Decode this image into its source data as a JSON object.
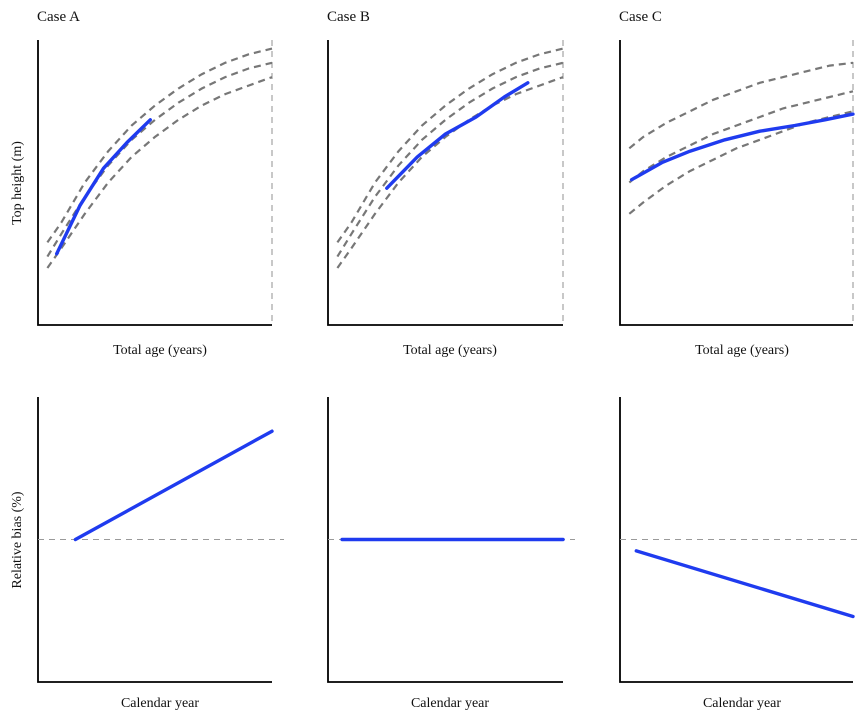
{
  "colors": {
    "observed": "#1f3bef",
    "reference": "#777777",
    "zero_line": "#9a9a9a",
    "axis": "#000000"
  },
  "labels": {
    "top_height": "Top height (m)",
    "relative_bias": "Relative bias (%)",
    "total_age": "Total age (years)",
    "calendar_year": "Calendar year"
  },
  "chart_data": [
    {
      "id": "topA",
      "type": "line",
      "title": "Case A",
      "xlabel": "Total age (years)",
      "ylabel": "Top height (m)",
      "xlim": [
        0,
        100
      ],
      "ylim": [
        0,
        100
      ],
      "vline_x": 100,
      "reference_curves": [
        {
          "x": [
            4,
            10,
            20,
            30,
            40,
            50,
            60,
            70,
            80,
            90,
            100
          ],
          "y": [
            29,
            36,
            50,
            61,
            70,
            77,
            83,
            88,
            92,
            95,
            97
          ]
        },
        {
          "x": [
            4,
            10,
            20,
            30,
            40,
            50,
            60,
            70,
            80,
            90,
            100
          ],
          "y": [
            24,
            32,
            45,
            56,
            65,
            72,
            78,
            83,
            87,
            90,
            92
          ]
        },
        {
          "x": [
            4,
            10,
            20,
            30,
            40,
            50,
            60,
            70,
            80,
            90,
            100
          ],
          "y": [
            20,
            27,
            39,
            50,
            59,
            66,
            72,
            77,
            81,
            84,
            87
          ]
        }
      ],
      "observed": {
        "x": [
          8,
          18,
          28,
          38,
          48
        ],
        "y": [
          25,
          42,
          55,
          64,
          72
        ]
      },
      "zero_line": false
    },
    {
      "id": "topB",
      "type": "line",
      "title": "Case B",
      "xlabel": "Total age (years)",
      "ylabel": "",
      "xlim": [
        0,
        100
      ],
      "ylim": [
        0,
        100
      ],
      "vline_x": 100,
      "reference_curves": [
        {
          "x": [
            4,
            10,
            20,
            30,
            40,
            50,
            60,
            70,
            80,
            90,
            100
          ],
          "y": [
            29,
            36,
            50,
            61,
            70,
            77,
            83,
            88,
            92,
            95,
            97
          ]
        },
        {
          "x": [
            4,
            10,
            20,
            30,
            40,
            50,
            60,
            70,
            80,
            90,
            100
          ],
          "y": [
            24,
            32,
            45,
            56,
            65,
            72,
            78,
            83,
            87,
            90,
            92
          ]
        },
        {
          "x": [
            4,
            10,
            20,
            30,
            40,
            50,
            60,
            70,
            80,
            90,
            100
          ],
          "y": [
            20,
            27,
            39,
            50,
            59,
            66,
            72,
            77,
            81,
            84,
            87
          ]
        }
      ],
      "observed": {
        "x": [
          25,
          38,
          50,
          63,
          75,
          85
        ],
        "y": [
          48,
          59,
          67,
          73,
          80,
          85
        ]
      },
      "zero_line": false
    },
    {
      "id": "topC",
      "type": "line",
      "title": "Case C",
      "xlabel": "Total age (years)",
      "ylabel": "",
      "xlim": [
        0,
        100
      ],
      "ylim": [
        0,
        100
      ],
      "vline_x": 100,
      "reference_curves": [
        {
          "x": [
            4,
            10,
            20,
            30,
            40,
            50,
            60,
            70,
            80,
            90,
            100
          ],
          "y": [
            62,
            66,
            71,
            75,
            79,
            82,
            85,
            87,
            89,
            91,
            92
          ]
        },
        {
          "x": [
            4,
            10,
            20,
            30,
            40,
            50,
            60,
            70,
            80,
            90,
            100
          ],
          "y": [
            50,
            54,
            59,
            63,
            67,
            70,
            73,
            76,
            78,
            80,
            82
          ]
        },
        {
          "x": [
            4,
            10,
            20,
            30,
            40,
            50,
            60,
            70,
            80,
            90,
            100
          ],
          "y": [
            39,
            43,
            49,
            54,
            58,
            62,
            65,
            68,
            71,
            73,
            75
          ]
        }
      ],
      "observed": {
        "x": [
          5,
          18,
          30,
          45,
          60,
          75,
          88,
          100
        ],
        "y": [
          51,
          57,
          61,
          65,
          68,
          70,
          72,
          74
        ]
      },
      "zero_line": false
    },
    {
      "id": "botA",
      "type": "line",
      "title": "",
      "xlabel": "Calendar year",
      "ylabel": "Relative bias (%)",
      "xlim": [
        0,
        100
      ],
      "ylim": [
        -50,
        50
      ],
      "vline_x": null,
      "reference_curves": [],
      "observed": {
        "x": [
          16,
          100
        ],
        "y": [
          0,
          38
        ]
      },
      "zero_line": true
    },
    {
      "id": "botB",
      "type": "line",
      "title": "",
      "xlabel": "Calendar year",
      "ylabel": "",
      "xlim": [
        0,
        100
      ],
      "ylim": [
        -50,
        50
      ],
      "vline_x": null,
      "reference_curves": [],
      "observed": {
        "x": [
          6,
          100
        ],
        "y": [
          0,
          0
        ]
      },
      "zero_line": true
    },
    {
      "id": "botC",
      "type": "line",
      "title": "",
      "xlabel": "Calendar year",
      "ylabel": "",
      "xlim": [
        0,
        100
      ],
      "ylim": [
        -50,
        50
      ],
      "vline_x": null,
      "reference_curves": [],
      "observed": {
        "x": [
          7,
          100
        ],
        "y": [
          -4,
          -27
        ]
      },
      "zero_line": true
    }
  ]
}
